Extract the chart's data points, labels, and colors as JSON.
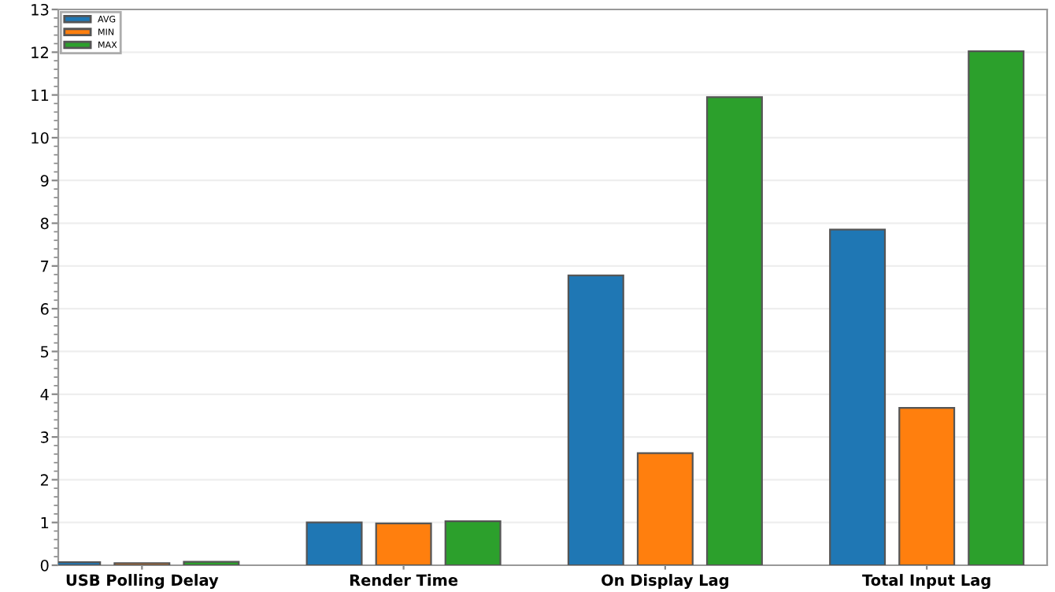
{
  "chart_data": {
    "type": "bar",
    "categories": [
      "USB Polling Delay",
      "Render Time",
      "On Display Lag",
      "Total Input Lag"
    ],
    "series": [
      {
        "name": "AVG",
        "color": "#1f77b4",
        "values": [
          0.07,
          1.0,
          6.78,
          7.85
        ]
      },
      {
        "name": "MIN",
        "color": "#ff7f0e",
        "values": [
          0.05,
          0.98,
          2.62,
          3.68
        ]
      },
      {
        "name": "MAX",
        "color": "#2ca02c",
        "values": [
          0.08,
          1.03,
          10.95,
          12.02
        ]
      }
    ],
    "ylim": [
      0,
      13
    ],
    "yticks": [
      0,
      1,
      2,
      3,
      4,
      5,
      6,
      7,
      8,
      9,
      10,
      11,
      12,
      13
    ],
    "grid": "y",
    "legend": "top left"
  }
}
